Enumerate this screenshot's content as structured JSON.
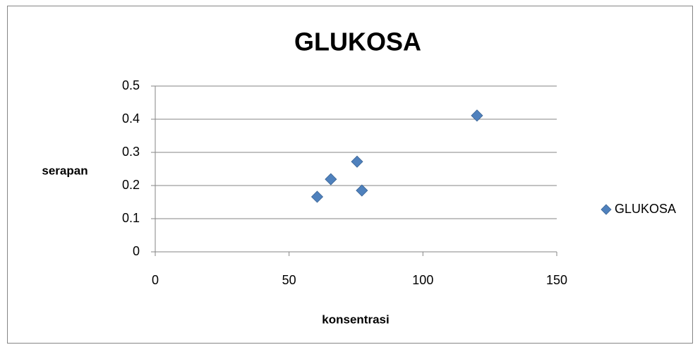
{
  "chart_data": {
    "type": "scatter",
    "title": "GLUKOSA",
    "x_label": "konsentrasi",
    "y_label": "serapan",
    "series": [
      {
        "name": "GLUKOSA",
        "color": "#4f81bd",
        "x": [
          60.5,
          65.6,
          75.4,
          77.2,
          120.2
        ],
        "values": [
          0.166,
          0.219,
          0.272,
          0.185,
          0.411
        ]
      }
    ],
    "xlim": [
      0,
      150
    ],
    "xticks": [
      0,
      50,
      100,
      150
    ],
    "ylim": [
      0,
      0.5
    ],
    "yticks": [
      0,
      0.1,
      0.2,
      0.3,
      0.4,
      0.5
    ],
    "grid": true,
    "legend": "right"
  }
}
